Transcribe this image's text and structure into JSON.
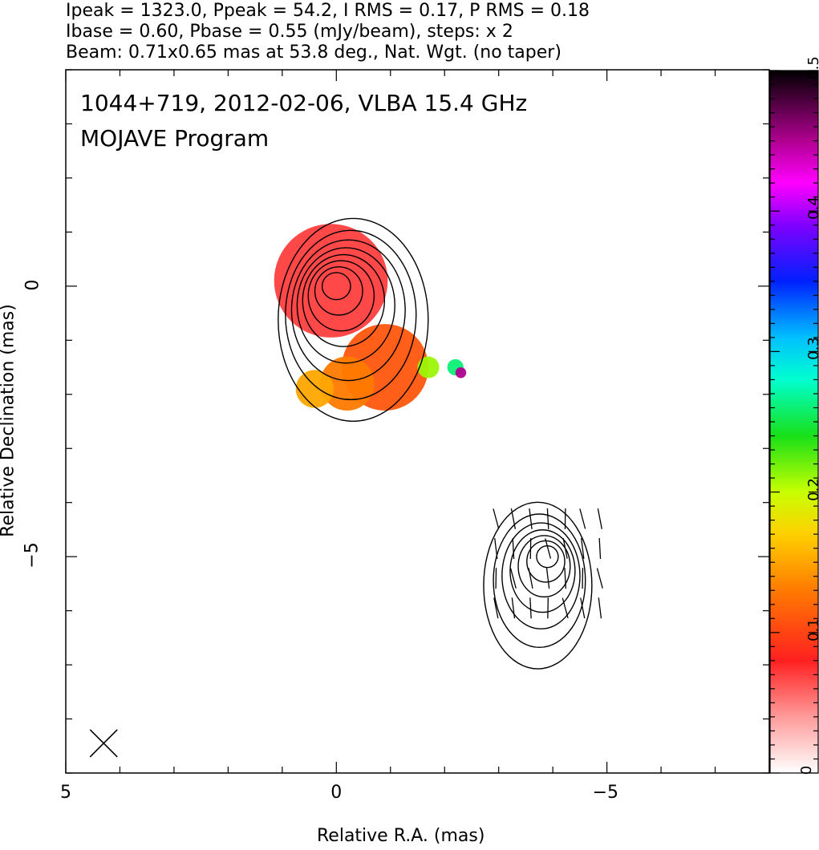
{
  "header": {
    "line1": "Ipeak = 1323.0, Ppeak = 54.2, I RMS = 0.17, P RMS = 0.18",
    "line2": "Ibase = 0.60, Pbase = 0.55 (mJy/beam), steps: x 2",
    "line3": "Beam: 0.71x0.65 mas at 53.8 deg., Nat. Wgt. (no taper)"
  },
  "plot": {
    "title_line1": "1044+719, 2012-02-06, VLBA 15.4 GHz",
    "title_line2": "MOJAVE Program"
  },
  "chart_data": {
    "type": "contour",
    "xlabel": "Relative R.A. (mas)",
    "ylabel": "Relative Declination (mas)",
    "xlim": [
      5,
      -8
    ],
    "ylim": [
      -9,
      4
    ],
    "x_ticks": [
      5,
      0,
      -5
    ],
    "x_tick_labels": [
      "5",
      "0",
      "−5"
    ],
    "y_ticks": [
      0,
      -5
    ],
    "y_tick_labels": [
      "0",
      "−5"
    ],
    "colorbar": {
      "min": 0,
      "max": 0.5,
      "ticks": [
        0,
        0.1,
        0.2,
        0.3,
        0.4,
        0.5
      ],
      "tick_labels": [
        "0",
        "0.1",
        "0.2",
        "0.3",
        "0.4",
        "0.5"
      ]
    },
    "components": [
      {
        "ra": 0.0,
        "dec": 0.0,
        "contour_radii": [
          0.25,
          0.42,
          0.58,
          0.72,
          0.86,
          1.0,
          1.15,
          1.32
        ]
      },
      {
        "ra": -3.9,
        "dec": -5.0,
        "contour_radii": [
          0.2,
          0.35,
          0.48,
          0.6,
          0.72,
          0.85,
          1.0
        ]
      }
    ],
    "fracpol_patches": [
      {
        "ra": 0.1,
        "dec": 0.1,
        "radius": 1.05,
        "value": 0.07
      },
      {
        "ra": -0.9,
        "dec": -1.5,
        "radius": 0.8,
        "value": 0.11
      },
      {
        "ra": -0.2,
        "dec": -1.8,
        "radius": 0.5,
        "value": 0.13
      },
      {
        "ra": 0.4,
        "dec": -1.9,
        "radius": 0.35,
        "value": 0.15
      },
      {
        "ra": -1.7,
        "dec": -1.5,
        "radius": 0.2,
        "value": 0.21
      },
      {
        "ra": -2.2,
        "dec": -1.5,
        "radius": 0.15,
        "value": 0.26
      },
      {
        "ra": -2.3,
        "dec": -1.6,
        "radius": 0.1,
        "value": 0.45
      }
    ],
    "beam": {
      "major_mas": 0.71,
      "minor_mas": 0.65,
      "pa_deg": 53.8
    }
  }
}
